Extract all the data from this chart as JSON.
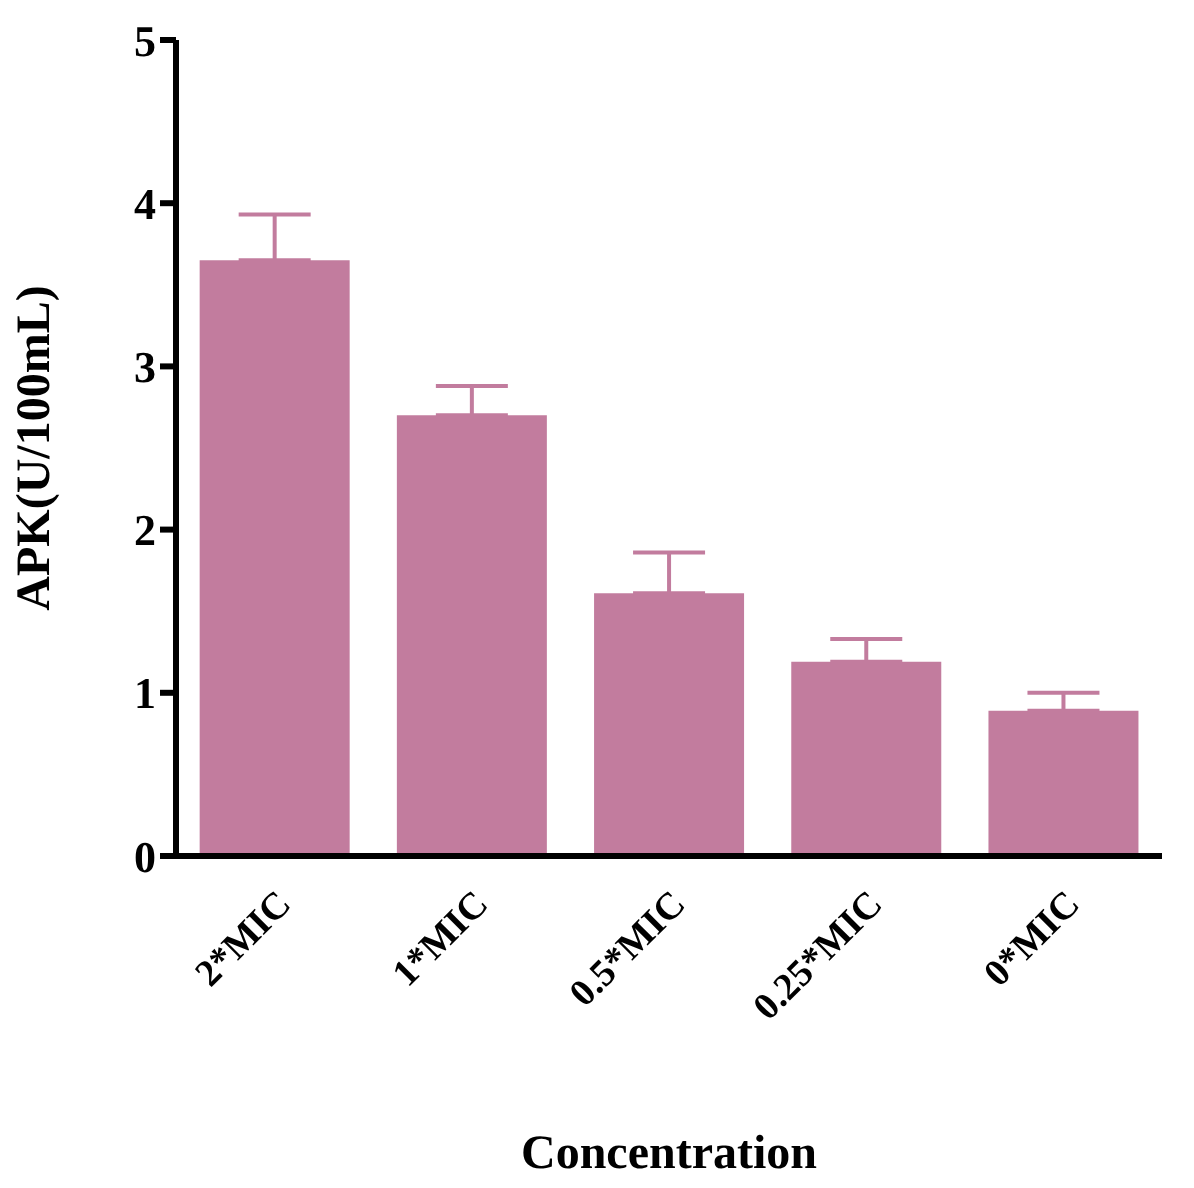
{
  "chart_data": {
    "type": "bar",
    "xlabel": "Concentration",
    "ylabel": "APK(U/100mL)",
    "categories": [
      "2*MIC",
      "1*MIC",
      "0.5*MIC",
      "0.25*MIC",
      "0*MIC"
    ],
    "values": [
      3.65,
      2.7,
      1.61,
      1.19,
      0.89
    ],
    "errors": [
      [
        3.65,
        3.93
      ],
      [
        2.7,
        2.88
      ],
      [
        1.61,
        1.86
      ],
      [
        1.19,
        1.33
      ],
      [
        0.89,
        1.0
      ]
    ],
    "color": "#c27c9e",
    "ylim": [
      0,
      5
    ],
    "yticks": [
      0,
      1,
      2,
      3,
      4,
      5
    ],
    "grid": false,
    "legend": false
  }
}
